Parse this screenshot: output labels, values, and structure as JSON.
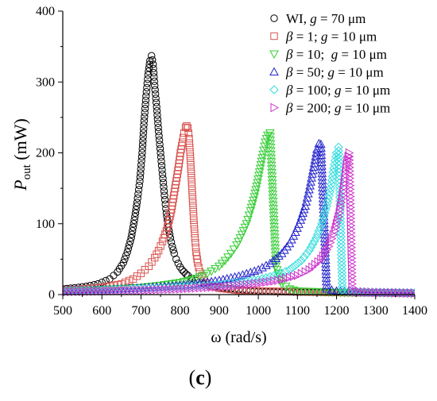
{
  "panel_label": "(c)",
  "chart_data": {
    "type": "scatter",
    "xlabel": "ω (rad/s)",
    "ylabel": {
      "main": "P",
      "sub": "out",
      "unit": " (mW)"
    },
    "xlim": [
      500,
      1400
    ],
    "ylim": [
      0,
      400
    ],
    "xticks": [
      500,
      600,
      700,
      800,
      900,
      1000,
      1100,
      1200,
      1300,
      1400
    ],
    "yticks": [
      0,
      100,
      200,
      300,
      400
    ],
    "grid": false,
    "legend_position": "top-right",
    "series": [
      {
        "legend": {
          "prefix": "WI, ",
          "sym": "g",
          "suffix": " = 70 μm"
        },
        "marker": "circle",
        "color": "#000000",
        "x": [
          500,
          530,
          560,
          590,
          620,
          640,
          655,
          665,
          675,
          683,
          690,
          697,
          703,
          708,
          713,
          718,
          723,
          727,
          731,
          735,
          740,
          745,
          750,
          755,
          760,
          765,
          770,
          775,
          780,
          785,
          790,
          795,
          800,
          805,
          810,
          815,
          820,
          830,
          840,
          860,
          900,
          950,
          1000,
          1100,
          1200,
          1300,
          1400
        ],
        "y": [
          8,
          9.5,
          11.5,
          15,
          22,
          32,
          45,
          60,
          80,
          105,
          130,
          160,
          200,
          245,
          280,
          310,
          330,
          337,
          325,
          295,
          265,
          230,
          200,
          170,
          140,
          115,
          95,
          80,
          68,
          58,
          50,
          44,
          39,
          35,
          32,
          29,
          27,
          23,
          20,
          15,
          10,
          7,
          5,
          3.5,
          3,
          2.5,
          2
        ]
      },
      {
        "legend": {
          "prefix": "",
          "sym": "β",
          "suffix": " = 1; ",
          "sym2": "g",
          "suffix2": " = 10 μm"
        },
        "marker": "square",
        "color": "#d9534f",
        "x": [
          500,
          550,
          600,
          650,
          680,
          700,
          720,
          735,
          745,
          755,
          765,
          772,
          778,
          784,
          790,
          796,
          801,
          806,
          810,
          814,
          817,
          820,
          823,
          826,
          829,
          832,
          835,
          838,
          841,
          845,
          850,
          860,
          880,
          900,
          950,
          1000,
          1050,
          1100,
          1150,
          1200,
          1300,
          1400
        ],
        "y": [
          6,
          7.5,
          10,
          15,
          22,
          30,
          40,
          52,
          62,
          75,
          90,
          105,
          120,
          140,
          160,
          180,
          200,
          215,
          228,
          236,
          238,
          235,
          220,
          195,
          165,
          135,
          105,
          80,
          60,
          45,
          32,
          20,
          12,
          9,
          6,
          5,
          4.5,
          4,
          3.5,
          3,
          2.5,
          2
        ]
      },
      {
        "legend": {
          "prefix": "",
          "sym": "β",
          "suffix": " = 10;  ",
          "sym2": "g",
          "suffix2": " = 10 μm"
        },
        "marker": "triangle-down",
        "color": "#33cc33",
        "x": [
          500,
          550,
          600,
          650,
          700,
          750,
          800,
          830,
          860,
          880,
          900,
          915,
          930,
          945,
          958,
          970,
          980,
          990,
          998,
          1005,
          1012,
          1018,
          1024,
          1030,
          1045,
          1060,
          1080,
          1100,
          1150,
          1200,
          1300,
          1400
        ],
        "y": [
          5,
          6,
          7,
          8.5,
          10,
          13,
          17,
          21,
          27,
          33,
          40,
          48,
          58,
          70,
          85,
          100,
          118,
          138,
          158,
          178,
          198,
          215,
          225,
          228,
          40,
          15,
          8,
          5,
          4,
          3,
          2.5,
          2
        ]
      },
      {
        "legend": {
          "prefix": "",
          "sym": "β",
          "suffix": " = 50; ",
          "sym2": "g",
          "suffix2": " = 10 μm"
        },
        "marker": "triangle-up",
        "color": "#2222cc",
        "x": [
          500,
          550,
          600,
          650,
          700,
          750,
          800,
          850,
          900,
          950,
          1000,
          1030,
          1060,
          1080,
          1095,
          1108,
          1120,
          1130,
          1138,
          1145,
          1150,
          1155,
          1160,
          1175,
          1200,
          1250,
          1300,
          1400
        ],
        "y": [
          6,
          6.5,
          7,
          8,
          9.5,
          11,
          13,
          16,
          20,
          26,
          35,
          44,
          58,
          72,
          88,
          105,
          125,
          148,
          170,
          190,
          205,
          213,
          212,
          8,
          5,
          4,
          3,
          2.5
        ]
      },
      {
        "legend": {
          "prefix": "",
          "sym": "β",
          "suffix": " = 100; ",
          "sym2": "g",
          "suffix2": " = 10 μm"
        },
        "marker": "diamond",
        "color": "#33dddd",
        "x": [
          500,
          550,
          600,
          650,
          700,
          750,
          800,
          850,
          900,
          950,
          1000,
          1050,
          1080,
          1110,
          1130,
          1148,
          1162,
          1175,
          1185,
          1193,
          1200,
          1205,
          1215,
          1230,
          1260,
          1300,
          1400
        ],
        "y": [
          5,
          5.5,
          6,
          7,
          8,
          9,
          10.5,
          12,
          14,
          17,
          21,
          28,
          35,
          48,
          62,
          80,
          100,
          125,
          150,
          178,
          200,
          208,
          6,
          4,
          3,
          3,
          2.5
        ]
      },
      {
        "legend": {
          "prefix": "",
          "sym": "β",
          "suffix": " = 200; ",
          "sym2": "g",
          "suffix2": " = 10 μm"
        },
        "marker": "triangle-right",
        "color": "#cc33cc",
        "x": [
          500,
          550,
          600,
          650,
          700,
          750,
          800,
          850,
          900,
          950,
          1000,
          1050,
          1100,
          1130,
          1160,
          1180,
          1195,
          1207,
          1215,
          1222,
          1227,
          1232,
          1240,
          1260,
          1300,
          1350,
          1400
        ],
        "y": [
          4,
          4.5,
          5,
          5.5,
          6,
          7,
          8,
          9.5,
          11,
          13,
          16,
          20,
          27,
          35,
          50,
          68,
          90,
          115,
          140,
          168,
          190,
          200,
          5,
          3.5,
          3,
          2.5,
          2
        ]
      }
    ]
  }
}
